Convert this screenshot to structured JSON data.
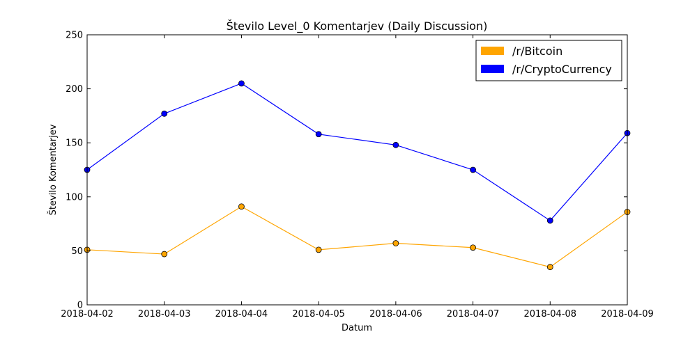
{
  "chart_data": {
    "type": "line",
    "title": "Število Level_0 Komentarjev (Daily Discussion)",
    "xlabel": "Datum",
    "ylabel": "Število Komentarjev",
    "categories": [
      "2018-04-02",
      "2018-04-03",
      "2018-04-04",
      "2018-04-05",
      "2018-04-06",
      "2018-04-07",
      "2018-04-08",
      "2018-04-09"
    ],
    "ylim": [
      0,
      250
    ],
    "yticks": [
      0,
      50,
      100,
      150,
      200,
      250
    ],
    "grid": false,
    "legend_position": "top-right",
    "series": [
      {
        "name": "/r/Bitcoin",
        "color": "#ffa500",
        "values": [
          51,
          47,
          91,
          51,
          57,
          53,
          35,
          86
        ]
      },
      {
        "name": "/r/CryptoCurrency",
        "color": "#0000ff",
        "values": [
          125,
          177,
          205,
          158,
          148,
          125,
          78,
          159
        ]
      }
    ]
  }
}
